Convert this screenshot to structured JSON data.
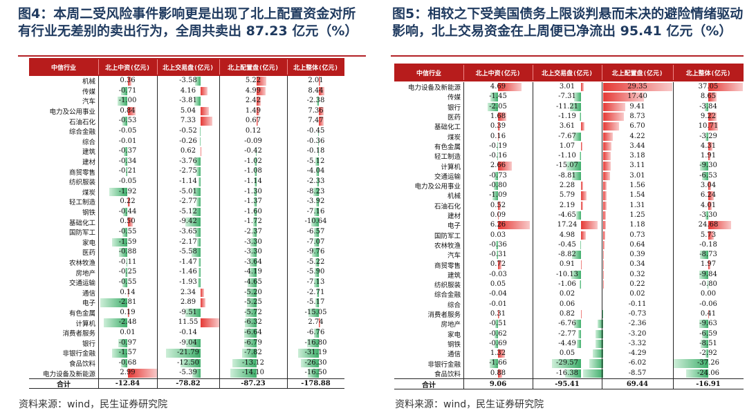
{
  "left": {
    "title": "图4：本周二受风险事件影响更是出现了北上配置资金对所有行业无差别的卖出行为，全周共卖出 87.23 亿元（%）",
    "source": "资料来源：wind，民生证券研究院",
    "headers": [
      "中信行业",
      "北上中资(亿元)",
      "北上交易盘(亿元)",
      "北上配置盘(亿元)",
      "北上整体(亿元)"
    ],
    "rows": [
      [
        "机械",
        "0.36",
        "-3.58",
        "5.22",
        "2.01"
      ],
      [
        "传媒",
        "-0.71",
        "4.16",
        "4.99",
        "8.44"
      ],
      [
        "汽车",
        "-1.00",
        "-3.81",
        "2.42",
        "-2.38"
      ],
      [
        "电力及公用事业",
        "0.84",
        "5.04",
        "1.49",
        "7.36"
      ],
      [
        "石油石化",
        "-0.53",
        "7.33",
        "0.67",
        "7.47"
      ],
      [
        "综合金融",
        "-0.05",
        "-0.52",
        "0.12",
        "-0.45"
      ],
      [
        "综合",
        "-0.01",
        "-0.26",
        "-0.09",
        "-0.36"
      ],
      [
        "建筑",
        "-0.37",
        "0.62",
        "-0.42",
        "-0.18"
      ],
      [
        "建材",
        "-0.34",
        "-3.76",
        "-1.02",
        "-5.12"
      ],
      [
        "商贸零售",
        "-0.21",
        "-2.75",
        "-1.08",
        "-4.04"
      ],
      [
        "纺织服装",
        "-0.05",
        "-1.14",
        "-1.14",
        "-2.33"
      ],
      [
        "煤炭",
        "-1.92",
        "-5.01",
        "-1.30",
        "-8.23"
      ],
      [
        "轻工制造",
        "0.22",
        "-2.77",
        "-1.37",
        "-3.92"
      ],
      [
        "钢铁",
        "-0.44",
        "-5.12",
        "-1.60",
        "-7.16"
      ],
      [
        "基础化工",
        "0.50",
        "-9.42",
        "-1.72",
        "-10.64"
      ],
      [
        "国防军工",
        "-0.55",
        "-3.65",
        "-2.37",
        "-6.57"
      ],
      [
        "家电",
        "-1.59",
        "-2.17",
        "-3.30",
        "-7.07"
      ],
      [
        "医药",
        "-0.88",
        "-5.58",
        "-3.30",
        "-9.76"
      ],
      [
        "农林牧渔",
        "-0.11",
        "-1.47",
        "-3.64",
        "-5.22"
      ],
      [
        "房地产",
        "-0.25",
        "-1.46",
        "-4.19",
        "-5.90"
      ],
      [
        "交通运输",
        "-0.55",
        "-1.93",
        "-4.65",
        "-7.13"
      ],
      [
        "通信",
        "0.14",
        "2.34",
        "-5.20",
        "-2.71"
      ],
      [
        "电子",
        "-2.81",
        "2.89",
        "-5.25",
        "-5.17"
      ],
      [
        "有色金属",
        "0.19",
        "-9.51",
        "-5.72",
        "-15.05"
      ],
      [
        "计算机",
        "-2.48",
        "11.55",
        "-6.32",
        "2.74"
      ],
      [
        "消费者服务",
        "0.01",
        "-0.14",
        "-6.64",
        "-6.76"
      ],
      [
        "银行",
        "-0.97",
        "-9.04",
        "-6.79",
        "-16.80"
      ],
      [
        "非银行金融",
        "-1.57",
        "-21.79",
        "-7.82",
        "-31.19"
      ],
      [
        "食品饮料",
        "-0.68",
        "-12.50",
        "-13.12",
        "-26.30"
      ],
      [
        "电力设备及新能源",
        "2.99",
        "-5.39",
        "-14.10",
        "-16.50"
      ]
    ],
    "totals": [
      "合计",
      "-12.84",
      "-78.82",
      "-87.23",
      "-178.88"
    ]
  },
  "right": {
    "title": "图5：相较之下受美国债务上限谈判悬而未决的避险情绪驱动影响，北上交易资金在上周便已净流出 95.41 亿元（%）",
    "source": "资料来源：wind，民生证券研究院",
    "headers": [
      "中信行业",
      "北上中资(亿元)",
      "北上交易盘(亿元)",
      "北上配置盘(亿元)",
      "北上整体(亿元)"
    ],
    "rows": [
      [
        "电力设备及新能源",
        "4.69",
        "3.01",
        "29.35",
        "37.05"
      ],
      [
        "传媒",
        "-1.45",
        "-7.31",
        "17.40",
        "8.65"
      ],
      [
        "银行",
        "-2.05",
        "-11.21",
        "9.41",
        "-3.84"
      ],
      [
        "医药",
        "1.68",
        "-1.19",
        "8.73",
        "9.22"
      ],
      [
        "基础化工",
        "0.39",
        "3.61",
        "6.70",
        "10.71"
      ],
      [
        "煤炭",
        "0.16",
        "-7.67",
        "4.22",
        "-3.29"
      ],
      [
        "有色金属",
        "-0.19",
        "1.07",
        "3.44",
        "4.31"
      ],
      [
        "轻工制造",
        "-0.16",
        "-1.10",
        "3.18",
        "1.91"
      ],
      [
        "计算机",
        "2.66",
        "-15.07",
        "3.11",
        "-9.30"
      ],
      [
        "交通运输",
        "-0.73",
        "-8.81",
        "3.01",
        "-6.53"
      ],
      [
        "电力及公用事业",
        "-0.80",
        "2.28",
        "1.56",
        "3.04"
      ],
      [
        "机械",
        "-1.09",
        "5.79",
        "1.54",
        "6.24"
      ],
      [
        "石油石化",
        "0.52",
        "2.19",
        "1.31",
        "4.01"
      ],
      [
        "建材",
        "0.09",
        "-4.65",
        "1.25",
        "-3.30"
      ],
      [
        "电子",
        "6.26",
        "17.24",
        "1.18",
        "24.68"
      ],
      [
        "国防军工",
        "0.03",
        "4.98",
        "0.73",
        "5.73"
      ],
      [
        "农林牧渔",
        "-0.36",
        "-0.45",
        "0.64",
        "-0.18"
      ],
      [
        "汽车",
        "-0.31",
        "-8.82",
        "0.39",
        "-8.73"
      ],
      [
        "商贸零售",
        "0.72",
        "0.91",
        "0.34",
        "1.97"
      ],
      [
        "建筑",
        "-0.03",
        "-10.13",
        "0.32",
        "-9.84"
      ],
      [
        "纺织服装",
        "0.05",
        "-1.06",
        "0.22",
        "-0.80"
      ],
      [
        "综合金融",
        "-0.04",
        "0.02",
        "0.02",
        "0.00"
      ],
      [
        "综合",
        "-0.01",
        "0.06",
        "-0.11",
        "-0.06"
      ],
      [
        "消费者服务",
        "0.31",
        "0.82",
        "-0.73",
        "0.41"
      ],
      [
        "房地产",
        "-0.51",
        "-6.76",
        "-2.36",
        "-9.63"
      ],
      [
        "家电",
        "-0.62",
        "-2.77",
        "-3.20",
        "-6.59"
      ],
      [
        "钢铁",
        "-0.69",
        "-4.49",
        "-3.32",
        "-8.51"
      ],
      [
        "通信",
        "1.32",
        "0.05",
        "-4.29",
        "-2.92"
      ],
      [
        "非银行金融",
        "-1.66",
        "-29.57",
        "-6.02",
        "-37.26"
      ],
      [
        "食品饮料",
        "0.88",
        "-16.38",
        "-8.57",
        "-24.06"
      ]
    ],
    "totals": [
      "合计",
      "9.06",
      "-95.41",
      "69.44",
      "-16.91"
    ]
  },
  "colors": {
    "title": "#1f3a5f",
    "header_bg": "#b71c1c",
    "positive_bar": "#e53935",
    "negative_bar": "#3fae6b"
  }
}
